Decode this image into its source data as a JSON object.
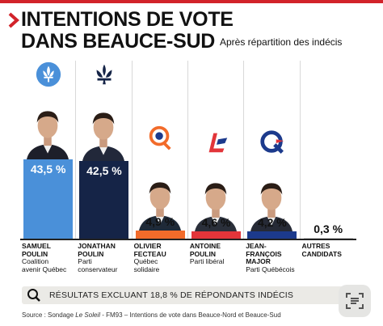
{
  "title_line1": "INTENTIONS DE VOTE",
  "title_line2": "DANS BEAUCE-SUD",
  "subtitle": "Après répartition des indécis",
  "note": "RÉSULTATS EXCLUANT 18,8 % DE RÉPONDANTS INDÉCIS",
  "source_prefix": "Source : Sondage ",
  "source_italic": "Le Soleil",
  "source_suffix": " - FM93 – Intentions de vote dans Beauce-Nord et Beauce-Sud",
  "icons": [
    "chevron-right-icon",
    "fleur-de-lis-icon",
    "pc-logo-icon",
    "qs-logo-icon",
    "plq-logo-icon",
    "pq-logo-icon",
    "magnifier-icon",
    "scan-icon"
  ],
  "candidates": [
    {
      "name_lines": [
        "SAMUEL",
        "POULIN"
      ],
      "party_lines": [
        "Coalition",
        "avenir Québec"
      ]
    },
    {
      "name_lines": [
        "JONATHAN",
        "POULIN"
      ],
      "party_lines": [
        "Parti",
        "conservateur"
      ]
    },
    {
      "name_lines": [
        "OLIVIER",
        "FECTEAU"
      ],
      "party_lines": [
        "Québec",
        "solidaire"
      ]
    },
    {
      "name_lines": [
        "ANTOINE",
        "POULIN"
      ],
      "party_lines": [
        "Parti libéral"
      ]
    },
    {
      "name_lines": [
        "JEAN-",
        "FRANÇOIS",
        "MAJOR"
      ],
      "party_lines": [
        "Parti Québécois"
      ]
    },
    {
      "name_lines": [
        "AUTRES",
        "CANDIDATS"
      ],
      "party_lines": []
    }
  ],
  "chart_data": {
    "type": "bar",
    "categories": [
      "Samuel Poulin",
      "Jonathan Poulin",
      "Olivier Fecteau",
      "Antoine Poulin",
      "Jean-François Major",
      "Autres candidats"
    ],
    "values": [
      43.5,
      42.5,
      4.9,
      4.6,
      4.2,
      0.3
    ],
    "value_labels": [
      "43,5 %",
      "42,5 %",
      "4,9 %",
      "4,6 %",
      "4,2 %",
      "0,3 %"
    ],
    "colors": [
      "#4a90d9",
      "#152447",
      "#f26b2a",
      "#e2353a",
      "#1c3a8c",
      "#cccccc"
    ],
    "ylim": [
      0,
      50
    ]
  }
}
